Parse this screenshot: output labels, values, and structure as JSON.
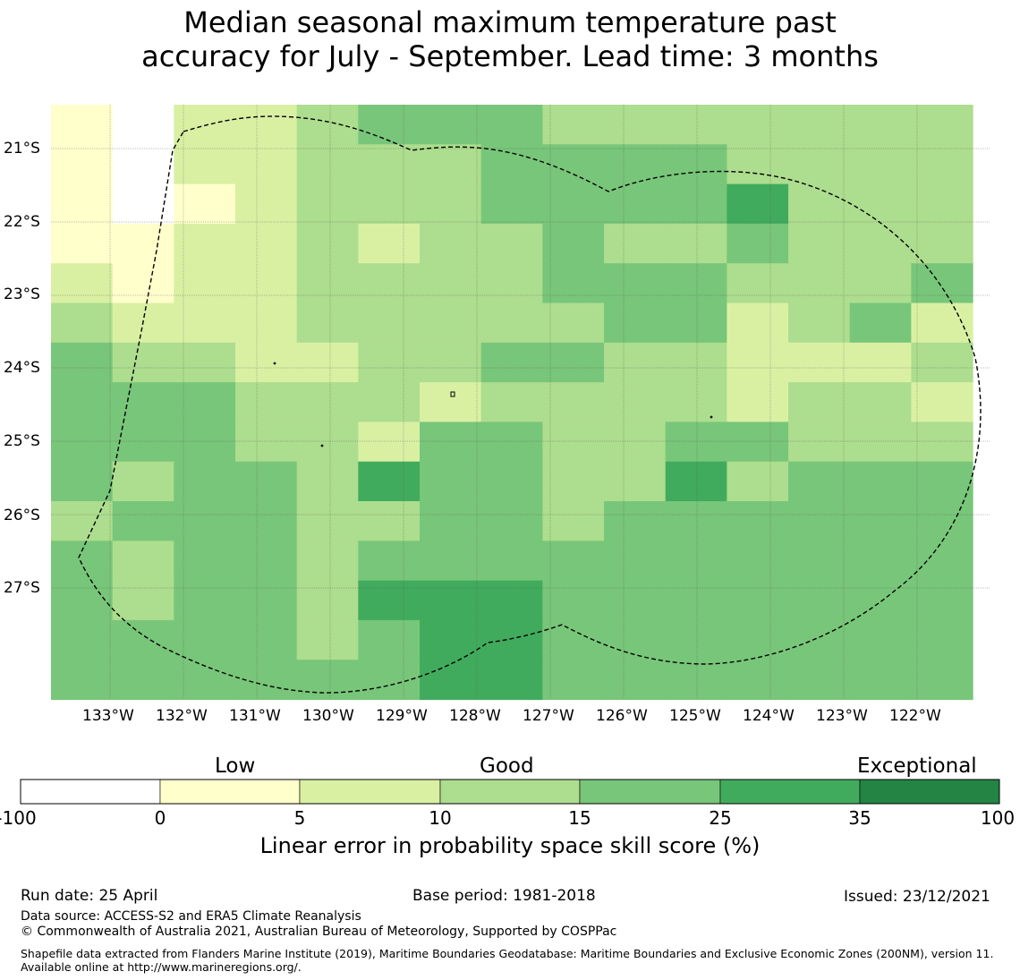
{
  "title_line1": "Median seasonal maximum temperature past",
  "title_line2": "accuracy for July - September. Lead time: 3 months",
  "map": {
    "lat_labels": [
      "21°S",
      "22°S",
      "23°S",
      "24°S",
      "25°S",
      "26°S",
      "27°S"
    ],
    "lon_labels": [
      "133°W",
      "132°W",
      "131°W",
      "130°W",
      "129°W",
      "128°W",
      "127°W",
      "126°W",
      "125°W",
      "124°W",
      "123°W",
      "122°W"
    ],
    "level_colors": [
      "#ffffff",
      "#ffffcc",
      "#d9f0a3",
      "#addd8e",
      "#78c679",
      "#41ab5d",
      "#238443"
    ],
    "grid_levels": [
      "102234443333333",
      "102233344443333",
      "101233344445333",
      "112232334334333",
      "212233334443334",
      "322233333442342",
      "433223344332223",
      "444333233332332",
      "444332443344333",
      "434435443353444",
      "344433443444444",
      "434434444444444",
      "434435554444444",
      "444434554444444",
      "444444554444444"
    ]
  },
  "colorbar": {
    "categories": [
      "Low",
      "Good",
      "Exceptional"
    ],
    "ticks": [
      "-100",
      "0",
      "5",
      "10",
      "15",
      "25",
      "35",
      "100"
    ],
    "title": "Linear error in probability space skill score (%)"
  },
  "footer": {
    "run_date": "Run date: 25 April",
    "base_period": "Base period: 1981-2018",
    "issued": "Issued: 23/12/2021",
    "data_source": "Data source: ACCESS-S2 and ERA5 Climate Reanalysis",
    "copyright": "© Commonwealth of Australia 2021, Australian Bureau of Meteorology, Supported by COSPPac",
    "shapefile": "Shapefile data extracted from Flanders Marine Institute (2019), Maritime Boundaries Geodatabase: Maritime Boundaries and Exclusive Economic Zones (200NM), version 11. Available online at http://www.marineregions.org/."
  }
}
